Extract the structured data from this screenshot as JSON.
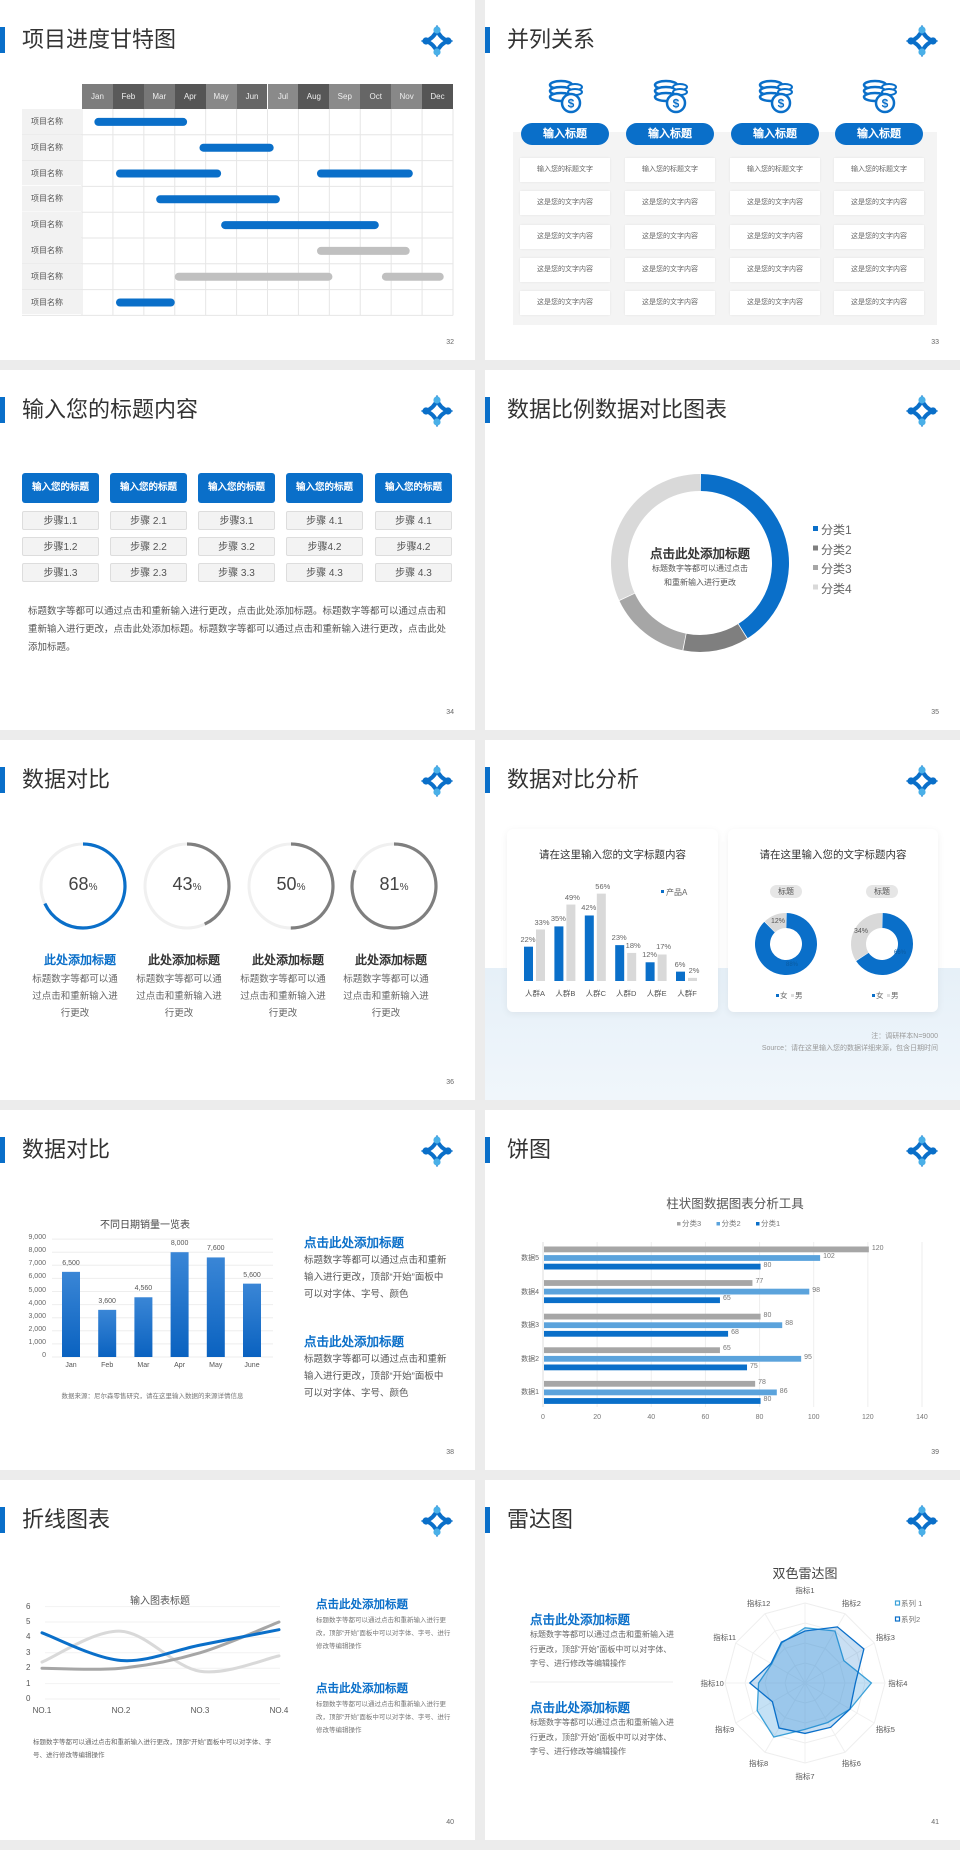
{
  "colors": {
    "blue": "#0a6fc9",
    "light_blue": "#5ba3dc",
    "gray": "#a6a6a6",
    "dark_gray": "#7f7f7f",
    "light_gray": "#d9d9d9",
    "band": "#e6f0f8"
  },
  "icons": {
    "logo": "diamond-dots-logo",
    "coins": "coins-dollar-icon"
  },
  "slides": [
    {
      "page": "32",
      "title": "项目进度甘特图"
    },
    {
      "page": "33",
      "title": "并列关系"
    },
    {
      "page": "34",
      "title": "输入您的标题内容"
    },
    {
      "page": "35",
      "title": "数据比例数据对比图表"
    },
    {
      "page": "36",
      "title": "数据对比"
    },
    {
      "page": "37",
      "title": "数据对比分析"
    },
    {
      "page": "38",
      "title": "数据对比"
    },
    {
      "page": "39",
      "title": "饼图"
    },
    {
      "page": "40",
      "title": "折线图表"
    },
    {
      "page": "41",
      "title": "雷达图"
    }
  ],
  "gantt": {
    "months": [
      "Jan",
      "Feb",
      "Mar",
      "Apr",
      "May",
      "Jun",
      "Jul",
      "Aug",
      "Sep",
      "Oct",
      "Nov",
      "Dec"
    ],
    "rows": [
      {
        "label": "项目名称",
        "bars": [
          {
            "start": 0.4,
            "end": 3.4,
            "color": "blue"
          }
        ]
      },
      {
        "label": "项目名称",
        "bars": [
          {
            "start": 3.8,
            "end": 6.2,
            "color": "blue"
          }
        ]
      },
      {
        "label": "项目名称",
        "bars": [
          {
            "start": 1.1,
            "end": 4.5,
            "color": "blue"
          },
          {
            "start": 7.6,
            "end": 10.7,
            "color": "blue"
          }
        ]
      },
      {
        "label": "项目名称",
        "bars": [
          {
            "start": 2.4,
            "end": 6.4,
            "color": "blue"
          }
        ]
      },
      {
        "label": "项目名称",
        "bars": [
          {
            "start": 4.5,
            "end": 9.6,
            "color": "blue"
          }
        ]
      },
      {
        "label": "项目名称",
        "bars": [
          {
            "start": 7.6,
            "end": 10.6,
            "color": "gray"
          }
        ]
      },
      {
        "label": "项目名称",
        "bars": [
          {
            "start": 3.0,
            "end": 8.1,
            "color": "gray"
          },
          {
            "start": 9.7,
            "end": 11.7,
            "color": "gray"
          }
        ]
      },
      {
        "label": "项目名称",
        "bars": [
          {
            "start": 1.1,
            "end": 3.0,
            "color": "blue"
          }
        ]
      }
    ]
  },
  "parallel": {
    "columns": [
      {
        "heading": "输入标题",
        "cells": [
          "输入您的标题文字",
          "这是您的文字内容",
          "这是您的文字内容",
          "这是您的文字内容",
          "这是您的文字内容"
        ]
      },
      {
        "heading": "输入标题",
        "cells": [
          "输入您的标题文字",
          "这是您的文字内容",
          "这是您的文字内容",
          "这是您的文字内容",
          "这是您的文字内容"
        ]
      },
      {
        "heading": "输入标题",
        "cells": [
          "输入您的标题文字",
          "这是您的文字内容",
          "这是您的文字内容",
          "这是您的文字内容",
          "这是您的文字内容"
        ]
      },
      {
        "heading": "输入标题",
        "cells": [
          "输入您的标题文字",
          "这是您的文字内容",
          "这是您的文字内容",
          "这是您的文字内容",
          "这是您的文字内容"
        ]
      }
    ]
  },
  "steps": {
    "columns": [
      {
        "heading": "输入您的标题",
        "steps": [
          "步骤1.1",
          "步骤1.2",
          "步骤1.3"
        ]
      },
      {
        "heading": "输入您的标题",
        "steps": [
          "步骤 2.1",
          "步骤 2.2",
          "步骤 2.3"
        ]
      },
      {
        "heading": "输入您的标题",
        "steps": [
          "步骤3.1",
          "步骤 3.2",
          "步骤 3.3"
        ]
      },
      {
        "heading": "输入您的标题",
        "steps": [
          "步骤 4.1",
          "步骤4.2",
          "步骤 4.3"
        ]
      },
      {
        "heading": "输入您的标题",
        "steps": [
          "步骤 4.1",
          "步骤4.2",
          "步骤 4.3"
        ]
      }
    ],
    "paragraph": "标题数字等都可以通过点击和重新输入进行更改，点击此处添加标题。标题数字等都可以通过点击和重新输入进行更改，点击此处添加标题。标题数字等都可以通过点击和重新输入进行更改，点击此处添加标题。"
  },
  "ratio_donut": {
    "center_title": "点击此处添加标题",
    "center_text": "标题数字等都可以通过点击和重新输入进行更改",
    "chart_data": {
      "type": "pie",
      "donut": true,
      "categories": [
        "分类1",
        "分类2",
        "分类3",
        "分类4"
      ],
      "values": [
        41,
        12,
        15,
        32
      ],
      "colors": [
        "#0a6fc9",
        "#7f7f7f",
        "#a6a6a6",
        "#d9d9d9"
      ],
      "legend": "right"
    }
  },
  "progress": {
    "items": [
      {
        "value": 68,
        "unit": "%",
        "title": "此处添加标题",
        "text": "标题数字等都可以通过点击和重新输入进行更改",
        "color": "#0a6fc9"
      },
      {
        "value": 43,
        "unit": "%",
        "title": "此处添加标题",
        "text": "标题数字等都可以通过点击和重新输入进行更改",
        "color": "#7f7f7f"
      },
      {
        "value": 50,
        "unit": "%",
        "title": "此处添加标题",
        "text": "标题数字等都可以通过点击和重新输入进行更改",
        "color": "#7f7f7f"
      },
      {
        "value": 81,
        "unit": "%",
        "title": "此处添加标题",
        "text": "标题数字等都可以通过点击和重新输入进行更改",
        "color": "#7f7f7f"
      }
    ]
  },
  "analysis": {
    "left_title": "请在这里输入您的文字标题内容",
    "right_title": "请在这里输入您的文字标题内容",
    "note": "注：调研样本N=9000",
    "source": "Source：请在这里输入您的数据详细来源，包含日期时间",
    "donut_tag": "标题",
    "donut_legend": [
      "女",
      "男"
    ]
  },
  "chart_data": [
    {
      "type": "bar",
      "categories": [
        "人群A",
        "人群B",
        "人群C",
        "人群D",
        "人群E",
        "人群F"
      ],
      "series": [
        {
          "name": "产品A",
          "values": [
            22,
            35,
            42,
            23,
            12,
            6
          ],
          "color": "#0a6fc9"
        },
        {
          "values": [
            33,
            49,
            56,
            18,
            17,
            2
          ],
          "color": "#d9d9d9"
        }
      ],
      "value_suffix": "%",
      "legend": "top-right",
      "ylim": [
        0,
        60
      ]
    },
    {
      "type": "pie",
      "donut": true,
      "categories": [
        "女",
        "男"
      ],
      "values": [
        88,
        12
      ],
      "labels": [
        "88%",
        "12%"
      ],
      "colors": [
        "#0a6fc9",
        "#d9d9d9"
      ]
    },
    {
      "type": "pie",
      "donut": true,
      "categories": [
        "女",
        "男"
      ],
      "values": [
        66,
        34
      ],
      "labels": [
        "66%",
        "34%"
      ],
      "colors": [
        "#0a6fc9",
        "#d9d9d9"
      ]
    },
    {
      "type": "bar",
      "title": "不同日期销量一览表",
      "categories": [
        "Jan",
        "Feb",
        "Mar",
        "Apr",
        "May",
        "June"
      ],
      "values": [
        6500,
        3600,
        4560,
        8000,
        7600,
        5600
      ],
      "value_labels": [
        "6,500",
        "3,600",
        "4,560",
        "8,000",
        "7,600",
        "5,600"
      ],
      "yticks": [
        "0",
        "1,000",
        "2,000",
        "3,000",
        "4,000",
        "5,000",
        "6,000",
        "7,000",
        "8,000",
        "9,000"
      ],
      "ylim": [
        0,
        9000
      ],
      "grid": true,
      "source": "数据来源：尼尔森零售研究，请在这里输入数据的来源详情信息"
    },
    {
      "type": "bar",
      "orientation": "horizontal",
      "title": "柱状图数据图表分析工具",
      "categories": [
        "数据1",
        "数据2",
        "数据3",
        "数据4",
        "数据5"
      ],
      "series": [
        {
          "name": "分类1",
          "values": [
            80,
            75,
            68,
            65,
            80
          ],
          "color": "#0a6fc9"
        },
        {
          "name": "分类2",
          "values": [
            86,
            95,
            88,
            98,
            102
          ],
          "color": "#5ba3dc"
        },
        {
          "name": "分类3",
          "values": [
            78,
            65,
            80,
            77,
            120
          ],
          "color": "#a6a6a6"
        }
      ],
      "legend_order": [
        "分类3",
        "分类2",
        "分类1"
      ],
      "xticks": [
        "0",
        "20",
        "40",
        "60",
        "80",
        "100",
        "120",
        "140"
      ],
      "xlim": [
        0,
        140
      ],
      "legend": "top",
      "grid": true
    },
    {
      "type": "line",
      "title": "输入图表标题",
      "categories": [
        "NO.1",
        "NO.2",
        "NO.3",
        "NO.4"
      ],
      "series": [
        {
          "values": [
            4.3,
            2.5,
            3.5,
            4.5
          ],
          "color": "#0a6fc9"
        },
        {
          "values": [
            2.4,
            4.4,
            1.8,
            2.8
          ],
          "color": "#d9d9d9"
        },
        {
          "values": [
            2.0,
            2.0,
            3.0,
            5.0
          ],
          "color": "#a6a6a6"
        }
      ],
      "yticks": [
        "0",
        "1",
        "2",
        "3",
        "4",
        "5",
        "6"
      ],
      "ylim": [
        0,
        6
      ],
      "smooth": true,
      "grid": true
    },
    {
      "type": "radar",
      "title": "双色雷达图",
      "categories": [
        "指标1",
        "指标2",
        "指标3",
        "指标4",
        "指标5",
        "指标6",
        "指标7",
        "指标8",
        "指标9",
        "指标10",
        "指标11",
        "指标12"
      ],
      "series": [
        {
          "name": "系列 1",
          "values": [
            6.9,
            7.5,
            5.6,
            8.3,
            6.5,
            5.7,
            5.8,
            7.8,
            6.9,
            5.8,
            4.8,
            5.8
          ],
          "color": "#3aa0d8"
        },
        {
          "name": "系列2",
          "values": [
            6.5,
            8.1,
            8.5,
            6.3,
            6.5,
            6.4,
            6.3,
            6.5,
            4.7,
            6.9,
            4.9,
            5.9
          ],
          "color": "#0a6fc9"
        }
      ],
      "rlim": [
        0,
        10
      ],
      "legend": "top-right"
    }
  ],
  "text_blocks": {
    "s38": [
      {
        "title": "点击此处添加标题",
        "body": "标题数字等都可以通过点击和重新输入进行更改，顶部“开始”面板中可以对字体、字号、颜色"
      },
      {
        "title": "点击此处添加标题",
        "body": "标题数字等都可以通过点击和重新输入进行更改，顶部“开始”面板中可以对字体、字号、颜色"
      }
    ],
    "s40": [
      {
        "title": "点击此处添加标题",
        "body": "标题数字等都可以通过点击和重新输入进行更改，顶部“开始”面板中可以对字体、字号、进行修改等编辑操作"
      },
      {
        "title": "点击此处添加标题",
        "body": "标题数字等都可以通过点击和重新输入进行更改，顶部“开始”面板中可以对字体、字号、进行修改等编辑操作"
      }
    ],
    "s40_caption": "标题数字等都可以通过点击和重新输入进行更改，顶部“开始”面板中可以对字体、字号、进行修改等编辑操作",
    "s41": [
      {
        "title": "点击此处添加标题",
        "body": "标题数字等都可以通过点击和重新输入进行更改，顶部“开始”面板中可以对字体、字号、进行修改等编辑操作"
      },
      {
        "title": "点击此处添加标题",
        "body": "标题数字等都可以通过点击和重新输入进行更改，顶部“开始”面板中可以对字体、字号、进行修改等编辑操作"
      }
    ]
  }
}
